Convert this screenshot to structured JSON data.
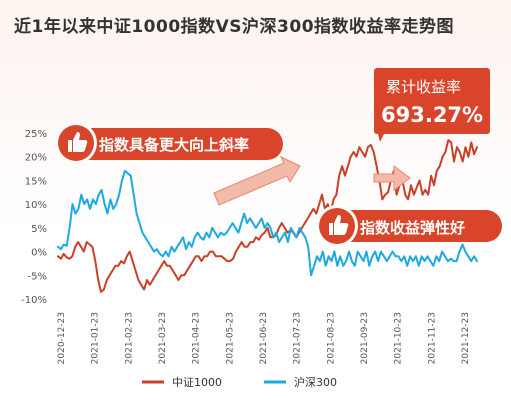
{
  "chart_data": {
    "type": "line",
    "title": "近1年以来中证1000指数VS沪深300指数收益率走势图",
    "ylim": [
      -10,
      25
    ],
    "y_ticks": [
      "25%",
      "20%",
      "15%",
      "10%",
      "5%",
      "0%",
      "-5%",
      "-10%"
    ],
    "y_tick_values": [
      25,
      20,
      15,
      10,
      5,
      0,
      -5,
      -10
    ],
    "x_ticks": [
      "2020-12-23",
      "2021-01-23",
      "2021-02-23",
      "2021-03-23",
      "2021-04-23",
      "2021-05-23",
      "2021-06-23",
      "2021-07-23",
      "2021-08-23",
      "2021-09-23",
      "2021-10-23",
      "2021-11-23",
      "2021-12-23"
    ],
    "grid": false,
    "legend_position": "bottom",
    "series": [
      {
        "name": "中证1000",
        "color": "#c8402a",
        "values": [
          -1,
          -1.5,
          -0.5,
          -1.2,
          -1.5,
          -1,
          1,
          2,
          1,
          0,
          2,
          1.5,
          1,
          -2,
          -6,
          -8.5,
          -8,
          -6,
          -5,
          -4,
          -3,
          -3,
          -2,
          -2.5,
          -1,
          0,
          -2,
          -4,
          -6,
          -7,
          -8,
          -6,
          -7,
          -6,
          -5,
          -4,
          -3,
          -2,
          -3,
          -3,
          -4,
          -5,
          -6,
          -5,
          -5,
          -4,
          -3,
          -2,
          -1,
          -1,
          -2,
          -1,
          -1,
          0,
          0,
          -1,
          -1,
          -1,
          -1.5,
          -2,
          -2,
          -1.5,
          0,
          1,
          2,
          1,
          1,
          2,
          2,
          3,
          2.5,
          3.5,
          4,
          5,
          3,
          3,
          3.5,
          5,
          6,
          5,
          4,
          4.5,
          4,
          3,
          4,
          5,
          6,
          7,
          8,
          9,
          8,
          10,
          12,
          9,
          10,
          8,
          11,
          12,
          16,
          18,
          16,
          18,
          20,
          21,
          20,
          22,
          21,
          20,
          22,
          22.5,
          21,
          18,
          15,
          11,
          12,
          12.5,
          15,
          17,
          12,
          14,
          15,
          12,
          11,
          14,
          12,
          13.5,
          15,
          12,
          13,
          12,
          16,
          14,
          17,
          18,
          20,
          21,
          23.5,
          23,
          19,
          22,
          21,
          19,
          22,
          20,
          23,
          20.5,
          22
        ]
      },
      {
        "name": "沪深300",
        "color": "#1ea9df",
        "values": [
          1,
          0.5,
          1.5,
          1.2,
          5,
          10,
          8,
          9,
          12,
          10,
          11,
          9,
          11,
          10,
          12,
          13,
          10,
          8,
          11,
          9,
          10,
          12,
          15,
          17,
          16.5,
          16,
          12,
          8,
          6,
          4,
          3,
          2,
          1,
          0,
          0.5,
          -0.5,
          -1,
          0,
          -1,
          1,
          0,
          1,
          2,
          3,
          0.5,
          2,
          1,
          3,
          4,
          3,
          2.5,
          4,
          3,
          5,
          4,
          3,
          4,
          3.5,
          4,
          5,
          6,
          5,
          4,
          6,
          8,
          6,
          7,
          6,
          5,
          6,
          7,
          5,
          6,
          5,
          3,
          4,
          2,
          3,
          4,
          2,
          5,
          4,
          3,
          5,
          4,
          3,
          1,
          -5,
          -3,
          -1,
          -2,
          0,
          -3,
          -1,
          -2,
          0,
          -3,
          -1,
          -3,
          -2,
          0,
          -2,
          -3,
          0,
          -1,
          -2,
          0,
          -3,
          -1,
          0,
          -2,
          0,
          -1,
          -2,
          -1,
          0,
          -1,
          -1,
          -2,
          -1,
          -3,
          -1,
          -2,
          -1,
          -3,
          -1,
          -2,
          -1,
          -2,
          -3,
          -1,
          -2,
          0,
          -1,
          -2,
          -1.5,
          -2,
          -2,
          0,
          1.5,
          0,
          -1,
          -2,
          -1,
          -2
        ]
      }
    ],
    "annotations": {
      "callout_1": "指数具备更大向上斜率",
      "callout_2": "指数收益弹性好",
      "result_label": "累计收益率",
      "result_value": "693.27%"
    },
    "palette": {
      "accent": "#d8452b",
      "arrow": "#f3b9a9",
      "axis_text": "#555555"
    }
  }
}
